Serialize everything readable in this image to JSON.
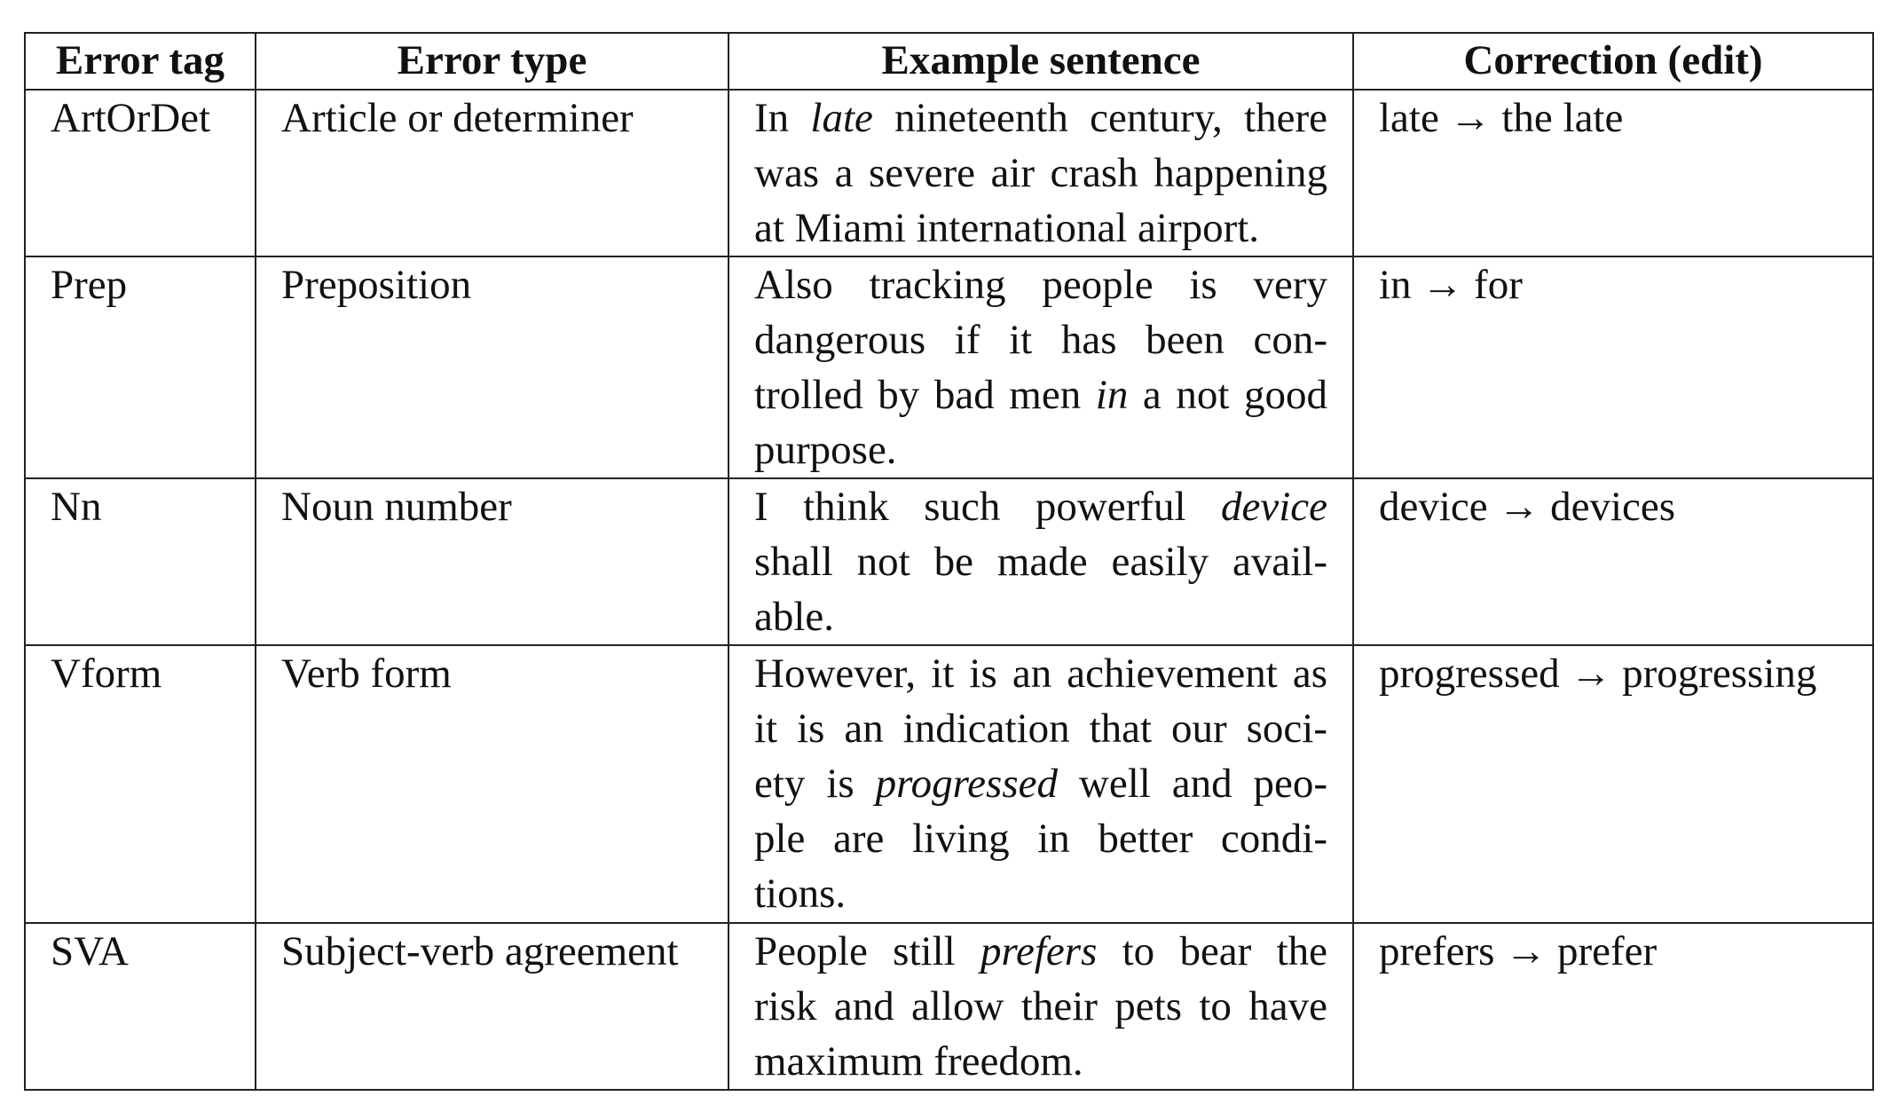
{
  "table": {
    "headers": [
      "Error tag",
      "Error type",
      "Example sentence",
      "Correction (edit)"
    ],
    "rows": [
      {
        "tag": "ArtOrDet",
        "type": "Article or determiner",
        "example_lines": [
          {
            "before": "In ",
            "em": "late",
            "after": " nineteenth century, there"
          },
          {
            "before": "was a severe air crash happening",
            "em": "",
            "after": ""
          },
          {
            "before": "at Miami international airport.",
            "em": "",
            "after": ""
          }
        ],
        "correction": "late → the late"
      },
      {
        "tag": "Prep",
        "type": "Preposition",
        "example_lines": [
          {
            "before": "Also tracking people is very",
            "em": "",
            "after": ""
          },
          {
            "before": "dangerous if it has been con-",
            "em": "",
            "after": ""
          },
          {
            "before": "trolled by bad men ",
            "em": "in",
            "after": " a not good"
          },
          {
            "before": "purpose.",
            "em": "",
            "after": ""
          }
        ],
        "correction": "in → for"
      },
      {
        "tag": "Nn",
        "type": "Noun number",
        "example_lines": [
          {
            "before": "I think such powerful ",
            "em": "device",
            "after": ""
          },
          {
            "before": "shall not be made easily avail-",
            "em": "",
            "after": ""
          },
          {
            "before": "able.",
            "em": "",
            "after": ""
          }
        ],
        "correction": "device → devices"
      },
      {
        "tag": "Vform",
        "type": "Verb form",
        "example_lines": [
          {
            "before": "However, it is an achievement as",
            "em": "",
            "after": ""
          },
          {
            "before": "it is an indication that our soci-",
            "em": "",
            "after": ""
          },
          {
            "before": "ety is ",
            "em": "progressed",
            "after": " well and peo-"
          },
          {
            "before": "ple are living in better condi-",
            "em": "",
            "after": ""
          },
          {
            "before": "tions.",
            "em": "",
            "after": ""
          }
        ],
        "correction": "progressed → progressing"
      },
      {
        "tag": "SVA",
        "type": "Subject-verb agreement",
        "example_lines": [
          {
            "before": "People still ",
            "em": "prefers",
            "after": " to bear the"
          },
          {
            "before": "risk and allow their pets to have",
            "em": "",
            "after": ""
          },
          {
            "before": "maximum freedom.",
            "em": "",
            "after": ""
          }
        ],
        "correction": "prefers → prefer"
      }
    ]
  }
}
